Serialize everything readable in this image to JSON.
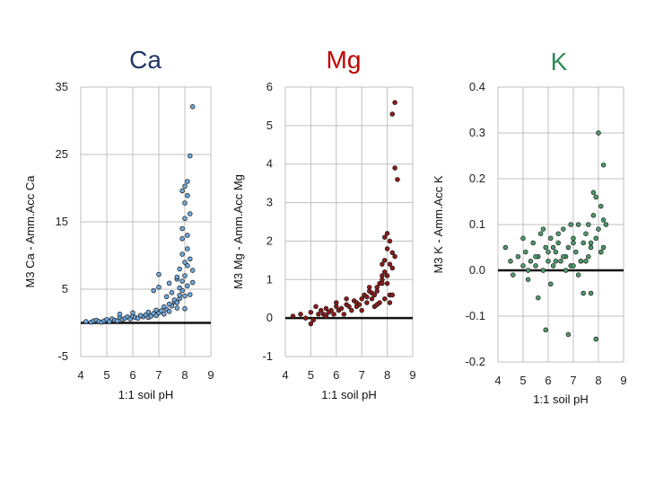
{
  "chart_data": [
    {
      "type": "scatter",
      "title": "Ca",
      "title_color": "#203864",
      "point_color": "#6fa8dc",
      "xlabel": "1:1 soil pH",
      "ylabel": "M3 Ca - Amm.Acc Ca",
      "xlim": [
        4,
        9
      ],
      "ylim": [
        -5,
        35
      ],
      "xticks": [
        "4",
        "5",
        "6",
        "7",
        "8",
        "9"
      ],
      "yticks": [
        "-5",
        "5",
        "15",
        "25",
        "35"
      ],
      "ytick_values": [
        -5,
        5,
        15,
        25,
        35
      ],
      "x": [
        4.2,
        4.4,
        4.5,
        4.6,
        4.7,
        4.8,
        4.9,
        5.0,
        5.1,
        5.2,
        5.3,
        5.4,
        5.5,
        5.6,
        5.7,
        5.8,
        5.9,
        6.0,
        6.1,
        6.2,
        6.3,
        6.4,
        6.5,
        6.6,
        6.7,
        6.8,
        6.9,
        7.0,
        7.1,
        7.2,
        7.3,
        7.4,
        7.5,
        7.6,
        7.7,
        7.8,
        7.9,
        8.0,
        8.1,
        8.2,
        8.3,
        5.5,
        6.0,
        6.3,
        6.6,
        6.9,
        7.2,
        7.4,
        7.6,
        7.8,
        7.9,
        8.0,
        8.1,
        8.2,
        8.3,
        8.0,
        7.9,
        8.1,
        7.8,
        7.7,
        7.9,
        8.0,
        8.2,
        8.1,
        7.9,
        6.8,
        7.0,
        7.3,
        7.5,
        7.7,
        7.0,
        8.0,
        8.2,
        8.3,
        7.9,
        8.0,
        8.1,
        8.1,
        8.0,
        7.7,
        7.8,
        7.4
      ],
      "y": [
        0.2,
        0.1,
        0.3,
        0.4,
        0.2,
        0.1,
        0.3,
        0.5,
        0.2,
        0.6,
        0.4,
        0.3,
        0.8,
        0.5,
        0.7,
        0.9,
        0.6,
        1.0,
        0.8,
        0.7,
        1.1,
        0.9,
        1.2,
        0.8,
        1.0,
        1.4,
        1.1,
        1.5,
        1.8,
        1.3,
        2.0,
        1.7,
        2.5,
        3.1,
        2.2,
        3.6,
        4.8,
        4.0,
        5.5,
        4.2,
        6.0,
        1.3,
        1.5,
        1.1,
        1.6,
        1.9,
        2.4,
        2.8,
        3.4,
        5.2,
        6.2,
        7.0,
        8.5,
        9.5,
        7.8,
        9.0,
        10.2,
        11.0,
        8.0,
        6.5,
        14.0,
        15.5,
        16.2,
        13.0,
        19.6,
        4.8,
        5.3,
        3.9,
        4.5,
        6.8,
        7.2,
        20.3,
        24.8,
        32.1,
        12.5,
        17.8,
        18.9,
        21.0,
        2.1,
        3.0,
        4.1,
        5.9
      ]
    },
    {
      "type": "scatter",
      "title": "Mg",
      "title_color": "#c00000",
      "point_color": "#8b1a1a",
      "xlabel": "1:1 soil pH",
      "ylabel": "M3 Mg - Amm.Acc Mg",
      "xlim": [
        4,
        9
      ],
      "ylim": [
        -1,
        6
      ],
      "xticks": [
        "4",
        "5",
        "6",
        "7",
        "8",
        "9"
      ],
      "yticks": [
        "-1",
        "0",
        "1",
        "2",
        "3",
        "4",
        "5",
        "6"
      ],
      "ytick_values": [
        -1,
        0,
        1,
        2,
        3,
        4,
        5,
        6
      ],
      "x": [
        4.3,
        4.6,
        4.8,
        5.0,
        5.1,
        5.3,
        5.4,
        5.5,
        5.6,
        5.7,
        5.8,
        5.9,
        6.0,
        6.1,
        6.2,
        6.3,
        6.4,
        6.5,
        6.6,
        6.7,
        6.8,
        6.9,
        7.0,
        7.1,
        7.2,
        7.3,
        7.4,
        7.5,
        7.6,
        7.7,
        7.8,
        7.9,
        8.0,
        8.1,
        8.2,
        8.3,
        5.2,
        5.6,
        6.0,
        6.4,
        6.8,
        7.0,
        7.2,
        7.4,
        7.6,
        7.8,
        7.9,
        8.0,
        8.1,
        8.2,
        8.2,
        8.3,
        7.9,
        7.8,
        8.0,
        8.1,
        7.7,
        7.5,
        7.3,
        7.9,
        8.1,
        8.2,
        8.4,
        8.3,
        8.0,
        7.8,
        5.0,
        7.6
      ],
      "y": [
        0.05,
        0.1,
        0.0,
        0.15,
        -0.05,
        0.1,
        0.2,
        0.1,
        0.05,
        0.15,
        0.2,
        0.1,
        0.3,
        0.2,
        0.25,
        0.1,
        0.35,
        0.3,
        0.2,
        0.45,
        0.4,
        0.35,
        0.5,
        0.6,
        0.55,
        0.7,
        0.65,
        0.6,
        0.8,
        0.9,
        1.0,
        1.2,
        1.1,
        1.4,
        1.3,
        1.6,
        0.3,
        0.25,
        0.4,
        0.5,
        0.3,
        0.2,
        0.4,
        0.5,
        0.7,
        0.9,
        1.5,
        1.8,
        2.0,
        1.7,
        5.3,
        5.6,
        2.1,
        1.4,
        0.9,
        0.6,
        0.4,
        0.3,
        0.8,
        0.5,
        0.4,
        0.6,
        3.6,
        3.9,
        2.2,
        1.1,
        -0.15,
        0.35
      ]
    },
    {
      "type": "scatter",
      "title": "K",
      "title_color": "#2e8b57",
      "point_color": "#4f9a6a",
      "xlabel": "1:1 soil pH",
      "ylabel": "M3 K - Amm.Acc K",
      "xlim": [
        4,
        9
      ],
      "ylim": [
        -0.2,
        0.4
      ],
      "xticks": [
        "4",
        "5",
        "6",
        "7",
        "8",
        "9"
      ],
      "yticks": [
        "-0.2",
        "-0.1",
        "0.0",
        "0.1",
        "0.2",
        "0.3",
        "0.4"
      ],
      "ytick_values": [
        -0.2,
        -0.1,
        0.0,
        0.1,
        0.2,
        0.3,
        0.4
      ],
      "x": [
        4.3,
        4.5,
        4.6,
        4.8,
        5.0,
        5.1,
        5.2,
        5.3,
        5.4,
        5.5,
        5.6,
        5.7,
        5.8,
        5.9,
        6.0,
        6.1,
        6.2,
        6.3,
        6.4,
        6.5,
        6.6,
        6.7,
        6.8,
        6.9,
        7.0,
        7.1,
        7.2,
        7.3,
        7.4,
        7.5,
        7.6,
        7.7,
        7.8,
        7.9,
        8.0,
        8.1,
        8.2,
        8.3,
        5.2,
        5.5,
        5.8,
        6.1,
        6.4,
        6.7,
        7.0,
        7.3,
        7.6,
        7.9,
        8.1,
        8.2,
        5.6,
        6.0,
        6.3,
        6.9,
        7.2,
        7.7,
        8.0,
        7.8,
        8.1,
        7.5,
        6.8,
        5.9,
        6.2,
        7.0,
        7.4,
        7.9,
        8.2,
        5.0,
        6.6,
        7.7
      ],
      "y": [
        0.05,
        0.02,
        -0.01,
        0.03,
        0.01,
        0.04,
        0.0,
        0.02,
        0.06,
        0.01,
        0.03,
        0.08,
        0.0,
        0.05,
        0.02,
        0.07,
        0.01,
        0.04,
        0.06,
        0.02,
        0.09,
        0.03,
        0.05,
        0.01,
        0.07,
        0.04,
        0.1,
        0.02,
        0.06,
        0.08,
        0.03,
        0.05,
        0.12,
        0.07,
        0.09,
        0.04,
        0.23,
        0.1,
        -0.02,
        0.03,
        0.09,
        -0.03,
        0.08,
        0.0,
        0.06,
        0.02,
        0.1,
        0.16,
        0.04,
        0.11,
        -0.06,
        0.04,
        0.02,
        0.1,
        -0.01,
        -0.05,
        0.3,
        0.17,
        0.14,
        0.02,
        -0.14,
        -0.13,
        0.05,
        0.01,
        -0.05,
        -0.15,
        0.05,
        0.07,
        0.03,
        0.06
      ]
    }
  ]
}
